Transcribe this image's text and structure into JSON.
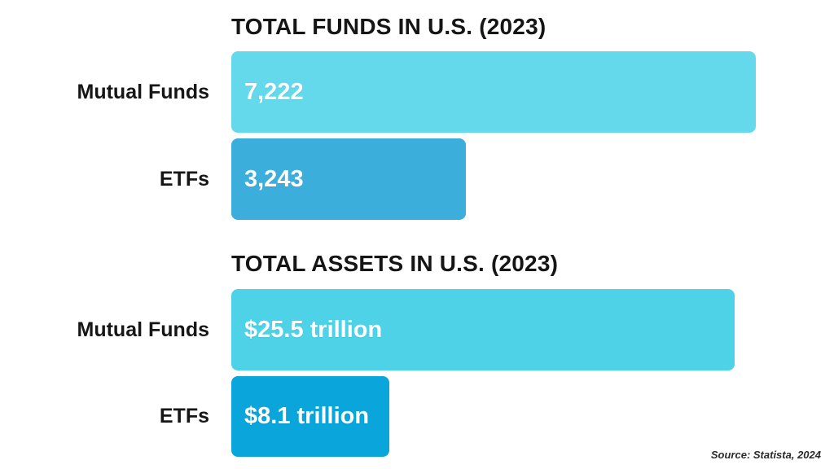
{
  "page": {
    "background_color": "#ffffff",
    "text_color": "#151515",
    "source_note": "Source: Statista, 2024"
  },
  "charts": [
    {
      "title": "TOTAL FUNDS IN U.S. (2023)",
      "rows": [
        {
          "label": "Mutual Funds",
          "value": 7222,
          "value_label": "7,222",
          "color": "#63d9eb",
          "width_pct": "100%"
        },
        {
          "label": "ETFs",
          "value": 3243,
          "value_label": "3,243",
          "color": "#3baedc",
          "width_pct": "44.7%"
        }
      ]
    },
    {
      "title": "TOTAL ASSETS IN U.S. (2023)",
      "rows": [
        {
          "label": "Mutual Funds",
          "value": 25.5,
          "value_label": "$25.5 trillion",
          "color": "#4dd2e8",
          "width_pct": "96%"
        },
        {
          "label": "ETFs",
          "value": 8.1,
          "value_label": "$8.1 trillion",
          "color": "#0aa5db",
          "width_pct": "30.1%"
        }
      ]
    }
  ],
  "chart_data": [
    {
      "type": "bar",
      "orientation": "horizontal",
      "title": "TOTAL FUNDS IN U.S. (2023)",
      "categories": [
        "Mutual Funds",
        "ETFs"
      ],
      "values": [
        7222,
        3243
      ],
      "value_labels": [
        "7,222",
        "3,243"
      ],
      "xlabel": "",
      "ylabel": "",
      "xlim": [
        0,
        7222
      ],
      "grid": false,
      "legend": "none",
      "bar_colors": [
        "#63d9eb",
        "#3baedc"
      ],
      "value_label_position": "inside-left",
      "value_label_color": "#ffffff"
    },
    {
      "type": "bar",
      "orientation": "horizontal",
      "title": "TOTAL ASSETS IN U.S. (2023)",
      "categories": [
        "Mutual Funds",
        "ETFs"
      ],
      "values": [
        25.5,
        8.1
      ],
      "value_labels": [
        "$25.5 trillion",
        "$8.1 trillion"
      ],
      "unit": "trillion USD",
      "xlabel": "",
      "ylabel": "",
      "xlim": [
        0,
        26.6
      ],
      "grid": false,
      "legend": "none",
      "bar_colors": [
        "#4dd2e8",
        "#0aa5db"
      ],
      "value_label_position": "inside-left",
      "value_label_color": "#ffffff"
    }
  ]
}
